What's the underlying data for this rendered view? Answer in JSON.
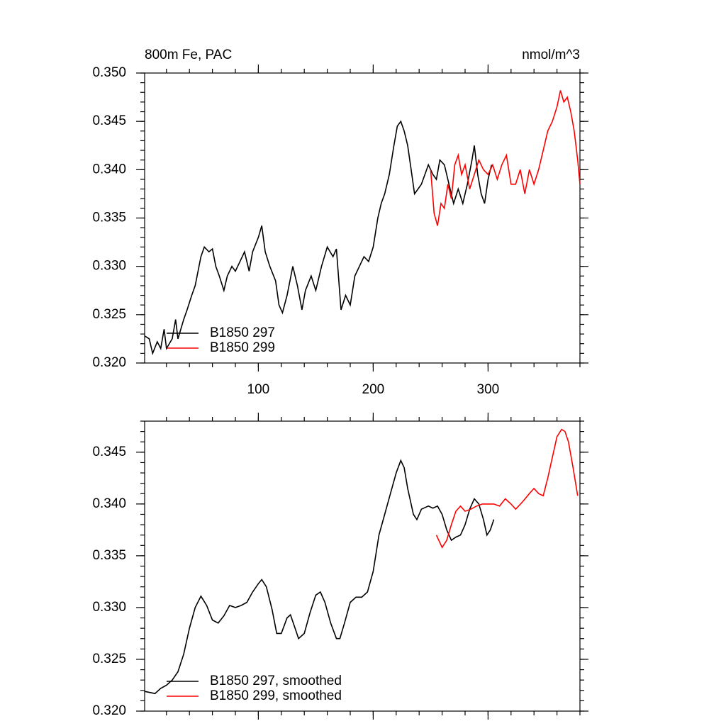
{
  "chart_data": [
    {
      "type": "line",
      "title": "800m Fe, PAC",
      "units": "nmol/m^3",
      "xlim": [
        1,
        380
      ],
      "ylim": [
        0.32,
        0.35
      ],
      "xticks": [
        100,
        200,
        300
      ],
      "show_xtick_labels": true,
      "yticks": [
        {
          "value": 0.32,
          "label": "0.320"
        },
        0.325,
        {
          "value": 0.33,
          "label": "0.330"
        },
        0.335,
        {
          "value": 0.34,
          "label": "0.340"
        },
        0.345,
        {
          "value": 0.35,
          "label": "0.350"
        }
      ],
      "x_minor_divisions": 5,
      "y_minor_divisions": 5,
      "legend": "lower left",
      "series": [
        {
          "name": "B1850 297",
          "color": "#000000",
          "x": [
            1,
            5,
            8,
            12,
            15,
            18,
            20,
            25,
            28,
            30,
            35,
            38,
            42,
            45,
            50,
            53,
            57,
            60,
            63,
            66,
            70,
            73,
            77,
            80,
            84,
            88,
            92,
            95,
            100,
            103,
            106,
            110,
            115,
            118,
            121,
            125,
            130,
            134,
            138,
            141,
            146,
            150,
            155,
            160,
            165,
            168,
            172,
            176,
            180,
            184,
            188,
            192,
            196,
            200,
            204,
            207,
            210,
            214,
            218,
            221,
            224,
            227,
            230,
            233,
            236,
            239,
            242,
            245,
            248,
            252,
            255,
            258,
            262,
            266,
            270,
            274,
            278,
            282,
            286,
            288,
            291,
            294,
            297,
            300,
            303
          ],
          "values": [
            0.3228,
            0.3225,
            0.321,
            0.3222,
            0.3215,
            0.3235,
            0.3215,
            0.3225,
            0.3245,
            0.3225,
            0.3245,
            0.3255,
            0.327,
            0.328,
            0.331,
            0.332,
            0.3315,
            0.3318,
            0.33,
            0.329,
            0.3275,
            0.329,
            0.33,
            0.3295,
            0.3305,
            0.3315,
            0.3295,
            0.3315,
            0.333,
            0.3342,
            0.3315,
            0.33,
            0.3285,
            0.326,
            0.3252,
            0.327,
            0.33,
            0.328,
            0.3255,
            0.3275,
            0.329,
            0.3275,
            0.33,
            0.332,
            0.331,
            0.3318,
            0.3255,
            0.327,
            0.326,
            0.329,
            0.33,
            0.331,
            0.3305,
            0.332,
            0.335,
            0.3365,
            0.3375,
            0.3395,
            0.3425,
            0.3445,
            0.345,
            0.344,
            0.3425,
            0.34,
            0.3375,
            0.338,
            0.3385,
            0.3395,
            0.3405,
            0.3395,
            0.339,
            0.341,
            0.3405,
            0.3385,
            0.3365,
            0.338,
            0.3365,
            0.3385,
            0.341,
            0.3425,
            0.3395,
            0.3375,
            0.3365,
            0.339,
            0.3405
          ]
        },
        {
          "name": "B1850 299",
          "color": "#ff0000",
          "x": [
            250,
            253,
            256,
            259,
            262,
            265,
            268,
            271,
            274,
            277,
            280,
            284,
            288,
            292,
            296,
            300,
            304,
            308,
            312,
            316,
            320,
            324,
            328,
            332,
            336,
            340,
            344,
            348,
            352,
            356,
            360,
            363,
            366,
            369,
            372,
            375,
            378,
            380
          ],
          "values": [
            0.34,
            0.3355,
            0.3342,
            0.3365,
            0.336,
            0.3385,
            0.337,
            0.3405,
            0.3415,
            0.3395,
            0.3405,
            0.338,
            0.3395,
            0.341,
            0.34,
            0.3395,
            0.3405,
            0.339,
            0.3405,
            0.3415,
            0.3385,
            0.3385,
            0.34,
            0.3375,
            0.34,
            0.3385,
            0.34,
            0.342,
            0.344,
            0.345,
            0.3465,
            0.3482,
            0.347,
            0.3475,
            0.346,
            0.344,
            0.341,
            0.3385
          ]
        }
      ]
    },
    {
      "type": "line",
      "xlim": [
        1,
        380
      ],
      "ylim": [
        0.32,
        0.348
      ],
      "xticks": [
        100,
        200,
        300
      ],
      "show_xtick_labels": false,
      "yticks": [
        {
          "value": 0.32,
          "label": "0.320"
        },
        0.325,
        {
          "value": 0.33,
          "label": "0.330"
        },
        0.335,
        {
          "value": 0.34,
          "label": "0.340"
        },
        0.345
      ],
      "x_minor_divisions": 5,
      "y_minor_divisions": 5,
      "legend": "lower left",
      "series": [
        {
          "name": "B1850 297, smoothed",
          "color": "#000000",
          "x": [
            1,
            10,
            15,
            20,
            25,
            30,
            35,
            40,
            45,
            50,
            55,
            60,
            65,
            70,
            75,
            80,
            85,
            90,
            95,
            100,
            103,
            107,
            112,
            116,
            120,
            125,
            128,
            132,
            135,
            140,
            145,
            150,
            154,
            158,
            163,
            168,
            171,
            175,
            180,
            185,
            190,
            195,
            200,
            205,
            210,
            215,
            220,
            224,
            227,
            230,
            235,
            238,
            242,
            248,
            252,
            256,
            260,
            264,
            268,
            272,
            276,
            280,
            284,
            288,
            292,
            296,
            299,
            302,
            305
          ],
          "values": [
            0.3219,
            0.3217,
            0.3222,
            0.3225,
            0.323,
            0.3238,
            0.3255,
            0.328,
            0.33,
            0.3311,
            0.3302,
            0.3288,
            0.3285,
            0.3292,
            0.3302,
            0.33,
            0.3302,
            0.3305,
            0.3315,
            0.3323,
            0.3327,
            0.332,
            0.3298,
            0.3275,
            0.3275,
            0.329,
            0.3293,
            0.328,
            0.327,
            0.3275,
            0.3295,
            0.3312,
            0.3315,
            0.3305,
            0.3285,
            0.327,
            0.327,
            0.3285,
            0.3305,
            0.331,
            0.331,
            0.3315,
            0.3335,
            0.337,
            0.339,
            0.341,
            0.343,
            0.3442,
            0.3435,
            0.3415,
            0.339,
            0.3385,
            0.3395,
            0.3398,
            0.3396,
            0.3398,
            0.339,
            0.3375,
            0.3365,
            0.3368,
            0.337,
            0.338,
            0.3395,
            0.3405,
            0.34,
            0.3385,
            0.337,
            0.3375,
            0.3385
          ]
        },
        {
          "name": "B1850 299, smoothed",
          "color": "#ff0000",
          "x": [
            255,
            260,
            264,
            268,
            272,
            276,
            280,
            285,
            290,
            295,
            300,
            305,
            310,
            315,
            320,
            324,
            330,
            336,
            340,
            344,
            348,
            352,
            356,
            360,
            364,
            367,
            370,
            374,
            378
          ],
          "values": [
            0.337,
            0.3358,
            0.3365,
            0.338,
            0.3393,
            0.3398,
            0.3393,
            0.3395,
            0.3398,
            0.34,
            0.34,
            0.34,
            0.3398,
            0.3405,
            0.34,
            0.3395,
            0.3402,
            0.341,
            0.3415,
            0.341,
            0.3408,
            0.3425,
            0.3445,
            0.3465,
            0.3472,
            0.347,
            0.346,
            0.3435,
            0.3408
          ]
        }
      ]
    }
  ]
}
